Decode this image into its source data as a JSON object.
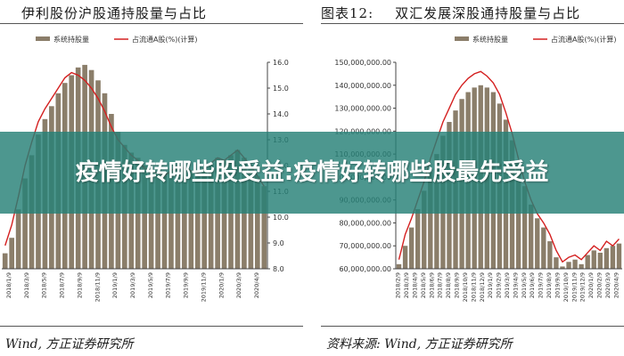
{
  "overlay": {
    "headline": "疫情好转哪些股受益:疫情好转哪些股最先受益"
  },
  "charts": [
    {
      "title_num": "",
      "title_text": "伊利股份沪股通持股量与占比",
      "source_text": "Wind, 方正证券研究所"
    },
    {
      "title_num": "图表12:",
      "title_text": "双汇发展深股通持股量与占比",
      "source_text": "资料来源: Wind, 方正证券研究所"
    }
  ],
  "colors": {
    "bar": "#8b7e6a",
    "line": "#d42020",
    "axis": "#444444",
    "overlay": "#268076"
  },
  "chart_data": [
    {
      "type": "bar",
      "legend": [
        "系统持股量",
        "占流通A股(%)(计算)"
      ],
      "legend_placement": "top",
      "y2_ticks": [
        "16.0",
        "15.0",
        "14.0",
        "13.0",
        "12.0",
        "11.0",
        "10.0",
        "9.0",
        "8.0"
      ],
      "y2lim": [
        8,
        16
      ],
      "x_labels": [
        "2018/1/9",
        "2018/3/9",
        "2018/5/9",
        "2018/7/9",
        "2018/9/9",
        "2018/11/9",
        "2019/1/9",
        "2019/3/9",
        "2019/5/9",
        "2019/7/9",
        "2019/9/9",
        "2019/11/9",
        "2020/1/9",
        "2020/3/9",
        "2020/4/9"
      ],
      "series": [
        {
          "name": "系统持股量",
          "kind": "bar",
          "values": [
            8.6,
            9.2,
            10.3,
            11.5,
            12.4,
            13.2,
            13.8,
            14.3,
            14.8,
            15.2,
            15.5,
            15.8,
            15.9,
            15.7,
            15.3,
            14.8,
            14.0,
            13.3,
            12.8,
            12.5,
            12.3,
            12.0,
            11.8,
            11.7,
            11.6,
            11.8,
            12.0,
            11.9,
            11.8,
            11.7,
            11.9,
            12.1,
            12.3,
            12.2,
            12.4,
            12.6,
            12.3,
            12.0,
            11.6,
            11.2
          ]
        },
        {
          "name": "占流通A股(%)(计算)",
          "kind": "line",
          "values": [
            8.9,
            9.7,
            10.8,
            12.0,
            12.9,
            13.7,
            14.2,
            14.6,
            15.0,
            15.4,
            15.6,
            15.5,
            15.3,
            15.0,
            14.6,
            14.1,
            13.5,
            13.0,
            12.7,
            12.4,
            12.2,
            11.9,
            11.8,
            11.7,
            11.6,
            11.8,
            12.0,
            11.9,
            11.8,
            11.7,
            11.9,
            12.1,
            12.3,
            12.2,
            12.4,
            12.6,
            12.3,
            12.0,
            11.6,
            11.2
          ]
        }
      ]
    },
    {
      "type": "bar",
      "legend": [
        "系统持股量",
        "占流通A股(%)(计算)"
      ],
      "legend_placement": "top",
      "y_ticks": [
        "150,000,000.00",
        "140,000,000.00",
        "130,000,000.00",
        "120,000,000.00",
        "110,000,000.00",
        "100,000,000.00",
        "90,000,000.00",
        "80,000,000.00",
        "70,000,000.00",
        "60,000,000.00"
      ],
      "ylim": [
        60000000,
        150000000
      ],
      "x_labels": [
        "2018/2/9",
        "2018/3/9",
        "2018/4/9",
        "2018/5/9",
        "2018/6/9",
        "2018/7/9",
        "2018/8/9",
        "2018/9/9",
        "2018/10/9",
        "2018/11/9",
        "2018/12/9",
        "2019/1/9",
        "2019/2/9",
        "2019/3/9",
        "2019/4/9",
        "2019/5/9",
        "2019/6/9",
        "2019/7/9",
        "2019/8/9",
        "2019/9/9",
        "2019/10/9",
        "2019/11/9",
        "2019/12/9",
        "2020/1/9",
        "2020/2/9",
        "2020/3/9",
        "2020/4/9"
      ],
      "series": [
        {
          "name": "系统持股量",
          "kind": "bar",
          "values": [
            62000000,
            70000000,
            78000000,
            86000000,
            94000000,
            102000000,
            110000000,
            118000000,
            124000000,
            129000000,
            134000000,
            137000000,
            139000000,
            140000000,
            139000000,
            137000000,
            132000000,
            125000000,
            116000000,
            106000000,
            96000000,
            88000000,
            82000000,
            78000000,
            72000000,
            65000000,
            61000000,
            63000000,
            64000000,
            62000000,
            66000000,
            68000000,
            67000000,
            69000000,
            70000000,
            71000000
          ]
        },
        {
          "name": "占流通A股(%)(计算)",
          "kind": "line",
          "values": [
            64000000,
            75000000,
            82000000,
            90000000,
            98000000,
            108000000,
            116000000,
            124000000,
            130000000,
            136000000,
            140000000,
            143000000,
            145000000,
            146000000,
            144000000,
            141000000,
            136000000,
            128000000,
            119000000,
            108000000,
            98000000,
            90000000,
            84000000,
            80000000,
            75000000,
            68000000,
            63000000,
            65000000,
            66000000,
            64000000,
            67000000,
            70000000,
            68000000,
            72000000,
            70000000,
            73000000
          ]
        }
      ]
    }
  ]
}
